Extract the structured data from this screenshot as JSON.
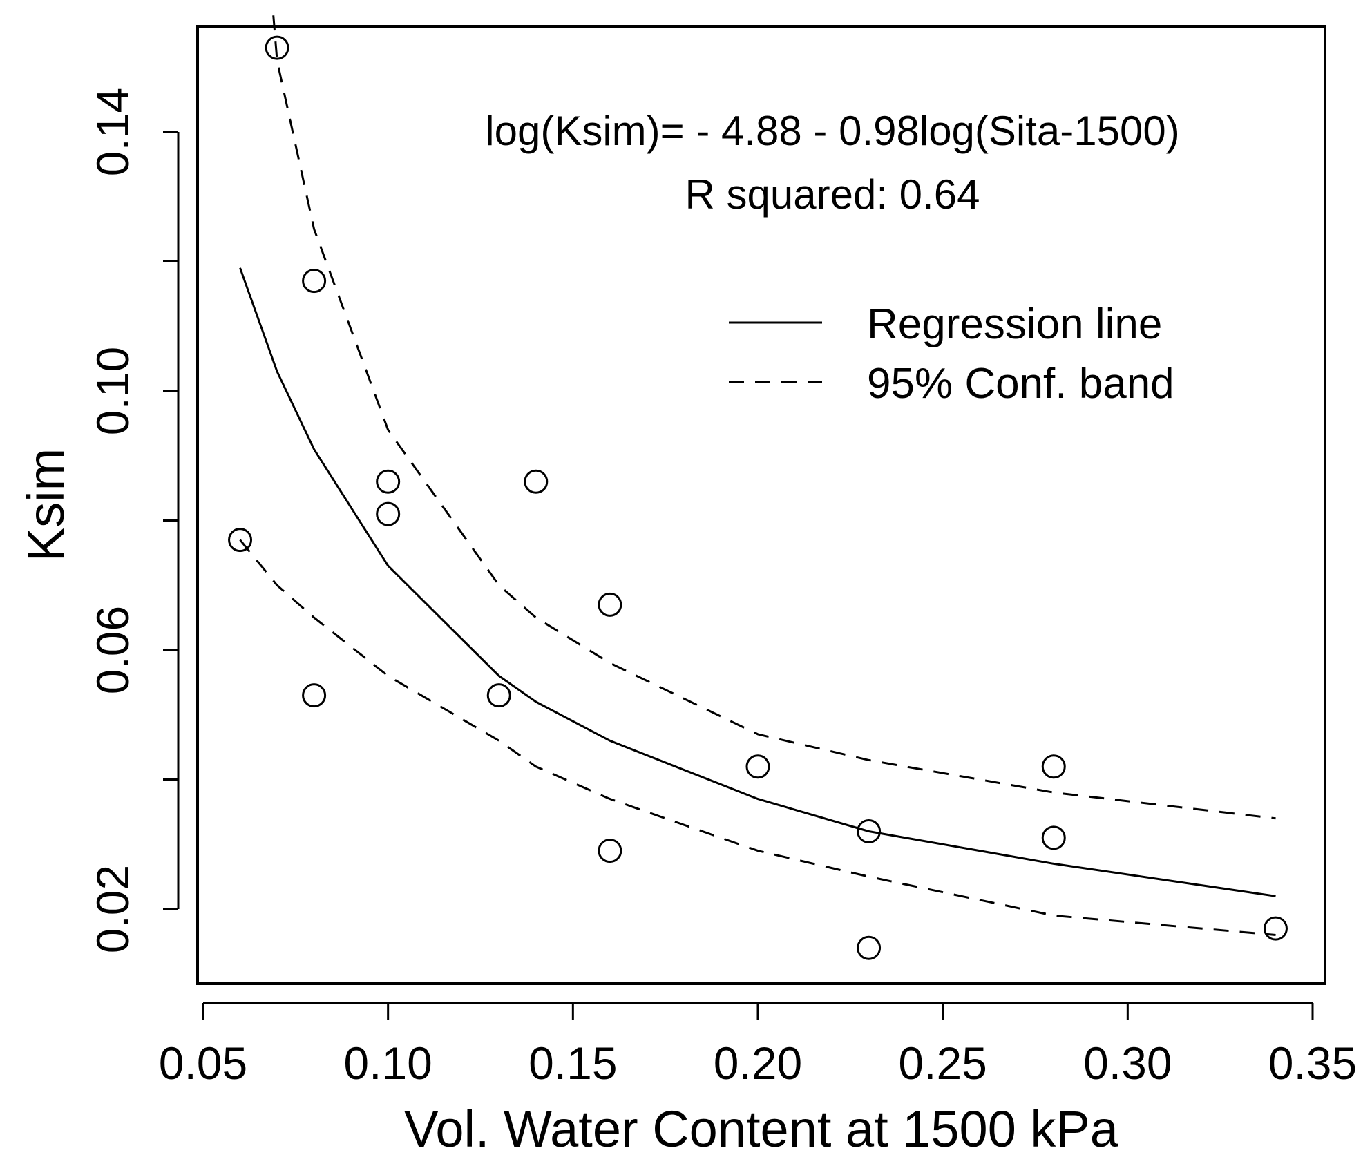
{
  "chart_data": {
    "type": "scatter",
    "title": "",
    "xlabel": "Vol. Water Content at 1500 kPa",
    "ylabel": "Ksim",
    "xlim": [
      0.05,
      0.35
    ],
    "ylim": [
      0.0105,
      0.158
    ],
    "xticks": [
      0.05,
      0.1,
      0.15,
      0.2,
      0.25,
      0.3,
      0.35
    ],
    "xtick_labels": [
      "0.05",
      "0.10",
      "0.15",
      "0.20",
      "0.25",
      "0.30",
      "0.35"
    ],
    "yticks": [
      0.02,
      0.04,
      0.06,
      0.08,
      0.1,
      0.12,
      0.14
    ],
    "ytick_labels": [
      "0.02",
      "",
      "0.06",
      "",
      "0.10",
      "",
      "0.14"
    ],
    "grid": false,
    "legend_position": "top-right",
    "annotations": {
      "equation": "log(Ksim)= - 4.88 - 0.98log(Sita-1500)",
      "r_squared": "R squared: 0.64"
    },
    "points": {
      "x": [
        0.06,
        0.07,
        0.08,
        0.08,
        0.1,
        0.1,
        0.13,
        0.14,
        0.16,
        0.16,
        0.2,
        0.23,
        0.23,
        0.28,
        0.28,
        0.34
      ],
      "y": [
        0.077,
        0.153,
        0.117,
        0.053,
        0.086,
        0.081,
        0.053,
        0.086,
        0.067,
        0.029,
        0.042,
        0.032,
        0.014,
        0.042,
        0.031,
        0.017
      ]
    },
    "series": [
      {
        "name": "Regression line",
        "style": "solid",
        "x": [
          0.06,
          0.07,
          0.08,
          0.1,
          0.13,
          0.14,
          0.16,
          0.2,
          0.23,
          0.28,
          0.34
        ],
        "y": [
          0.119,
          0.103,
          0.091,
          0.073,
          0.056,
          0.052,
          0.046,
          0.037,
          0.032,
          0.027,
          0.022
        ]
      },
      {
        "name": "95% Conf. band",
        "style": "dashed",
        "x": [
          0.069,
          0.07,
          0.08,
          0.1,
          0.13,
          0.14,
          0.16,
          0.2,
          0.23,
          0.28,
          0.34
        ],
        "y": [
          0.158,
          0.151,
          0.125,
          0.094,
          0.07,
          0.065,
          0.058,
          0.047,
          0.043,
          0.038,
          0.034
        ]
      },
      {
        "name": "95% Conf. band (lower)",
        "style": "dashed",
        "x": [
          0.06,
          0.07,
          0.08,
          0.1,
          0.13,
          0.14,
          0.16,
          0.2,
          0.23,
          0.28,
          0.34
        ],
        "y": [
          0.077,
          0.07,
          0.065,
          0.056,
          0.046,
          0.042,
          0.037,
          0.029,
          0.025,
          0.019,
          0.016
        ]
      }
    ],
    "legend": [
      {
        "label": "Regression line",
        "style": "solid"
      },
      {
        "label": "95% Conf. band",
        "style": "dashed"
      }
    ]
  }
}
